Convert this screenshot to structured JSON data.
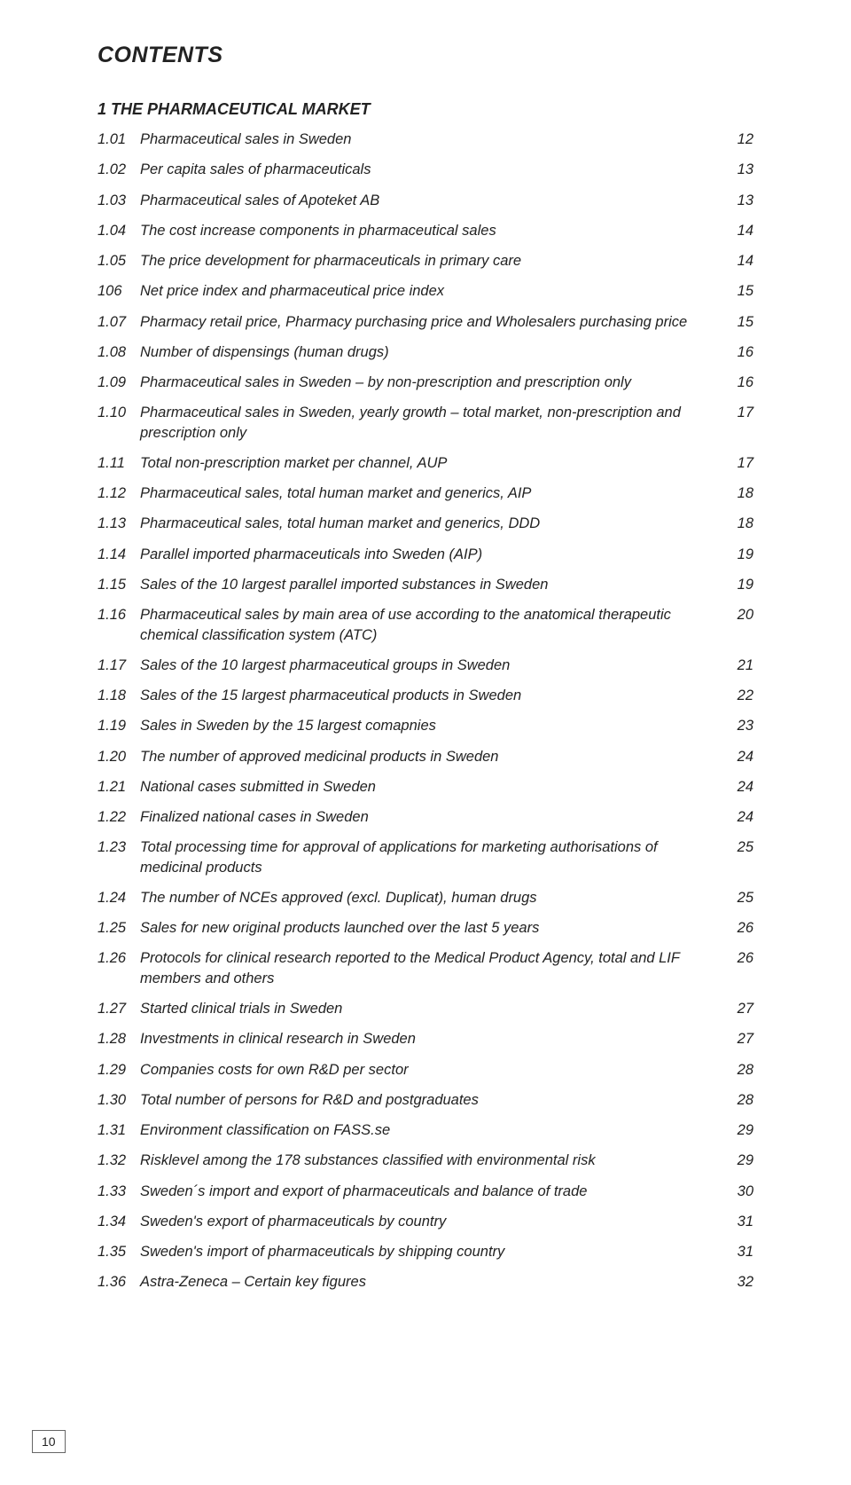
{
  "title": "CONTENTS",
  "section": "1 THE PHARMACEUTICAL MARKET",
  "page_number": "10",
  "colors": {
    "text": "#222222",
    "background": "#ffffff",
    "box_border": "#666666"
  },
  "typography": {
    "title_fontsize_pt": 19,
    "title_weight": "700",
    "title_style": "italic",
    "section_fontsize_pt": 13.5,
    "section_weight": "700",
    "section_style": "italic",
    "row_fontsize_pt": 12.5,
    "row_style": "italic"
  },
  "entries": [
    {
      "num": "1.01",
      "text": "Pharmaceutical sales in Sweden",
      "page": "12"
    },
    {
      "num": "1.02",
      "text": "Per capita sales of pharmaceuticals",
      "page": "13"
    },
    {
      "num": "1.03",
      "text": "Pharmaceutical sales of Apoteket AB",
      "page": "13"
    },
    {
      "num": "1.04",
      "text": "The cost increase components in pharmaceutical sales",
      "page": "14"
    },
    {
      "num": "1.05",
      "text": "The price development for pharmaceuticals in primary care",
      "page": "14"
    },
    {
      "num": "106",
      "text": "Net price index and pharmaceutical price index",
      "page": "15"
    },
    {
      "num": "1.07",
      "text": "Pharmacy retail price, Pharmacy purchasing price and Wholesalers purchasing price",
      "page": "15"
    },
    {
      "num": "1.08",
      "text": "Number of dispensings (human drugs)",
      "page": "16"
    },
    {
      "num": "1.09",
      "text": "Pharmaceutical sales in Sweden – by non-prescription and prescription only",
      "page": "16"
    },
    {
      "num": "1.10",
      "text": "Pharmaceutical sales in Sweden, yearly growth – total market, non-prescription and prescription only",
      "page": "17"
    },
    {
      "num": "1.11",
      "text": "Total non-prescription market per channel, AUP",
      "page": "17"
    },
    {
      "num": "1.12",
      "text": "Pharmaceutical sales, total human market and generics, AIP",
      "page": "18"
    },
    {
      "num": "1.13",
      "text": "Pharmaceutical sales, total human market and generics, DDD",
      "page": "18"
    },
    {
      "num": "1.14",
      "text": " Parallel imported pharmaceuticals into Sweden (AIP)",
      "page": "19"
    },
    {
      "num": "1.15",
      "text": "Sales of the 10 largest parallel imported substances in Sweden",
      "page": "19"
    },
    {
      "num": "1.16",
      "text": "Pharmaceutical sales by main area of use according to the anatomical therapeutic chemical classification system (ATC)",
      "page": "20"
    },
    {
      "num": "1.17",
      "text": "Sales of the 10 largest pharmaceutical groups in Sweden",
      "page": "21"
    },
    {
      "num": "1.18",
      "text": "Sales of the 15 largest pharmaceutical products in Sweden",
      "page": "22"
    },
    {
      "num": "1.19",
      "text": "Sales in Sweden by the 15 largest comapnies",
      "page": "23"
    },
    {
      "num": "1.20",
      "text": "The number of approved medicinal products in Sweden",
      "page": "24"
    },
    {
      "num": "1.21",
      "text": "National cases submitted in Sweden",
      "page": "24"
    },
    {
      "num": "1.22",
      "text": "Finalized national cases in Sweden",
      "page": "24"
    },
    {
      "num": "1.23",
      "text": "Total processing time for approval of applications for marketing authorisations of medicinal products",
      "page": "25"
    },
    {
      "num": "1.24",
      "text": "The number of NCEs approved (excl. Duplicat), human drugs",
      "page": "25"
    },
    {
      "num": "1.25",
      "text": "Sales for new original products launched over the last 5 years",
      "page": "26"
    },
    {
      "num": "1.26",
      "text": "Protocols for clinical research reported to the Medical Product Agency, total and LIF members and others",
      "page": "26"
    },
    {
      "num": "1.27",
      "text": "Started clinical trials in Sweden",
      "page": "27"
    },
    {
      "num": "1.28",
      "text": "Investments in clinical research in Sweden",
      "page": "27"
    },
    {
      "num": "1.29",
      "text": "Companies costs for own R&D per sector",
      "page": "28"
    },
    {
      "num": "1.30",
      "text": "Total number of persons for R&D and postgraduates",
      "page": "28"
    },
    {
      "num": "1.31",
      "text": "Environment classification on FASS.se",
      "page": "29"
    },
    {
      "num": "1.32",
      "text": "Risklevel among the 178 substances classified with environmental risk",
      "page": "29"
    },
    {
      "num": "1.33",
      "text": "Sweden´s import and export of pharmaceuticals and balance of trade",
      "page": "30"
    },
    {
      "num": "1.34",
      "text": "Sweden's export of pharmaceuticals by country",
      "page": "31"
    },
    {
      "num": "1.35",
      "text": "Sweden's import of pharmaceuticals by shipping country",
      "page": "31"
    },
    {
      "num": "1.36",
      "text": "Astra-Zeneca – Certain key figures",
      "page": "32"
    }
  ]
}
